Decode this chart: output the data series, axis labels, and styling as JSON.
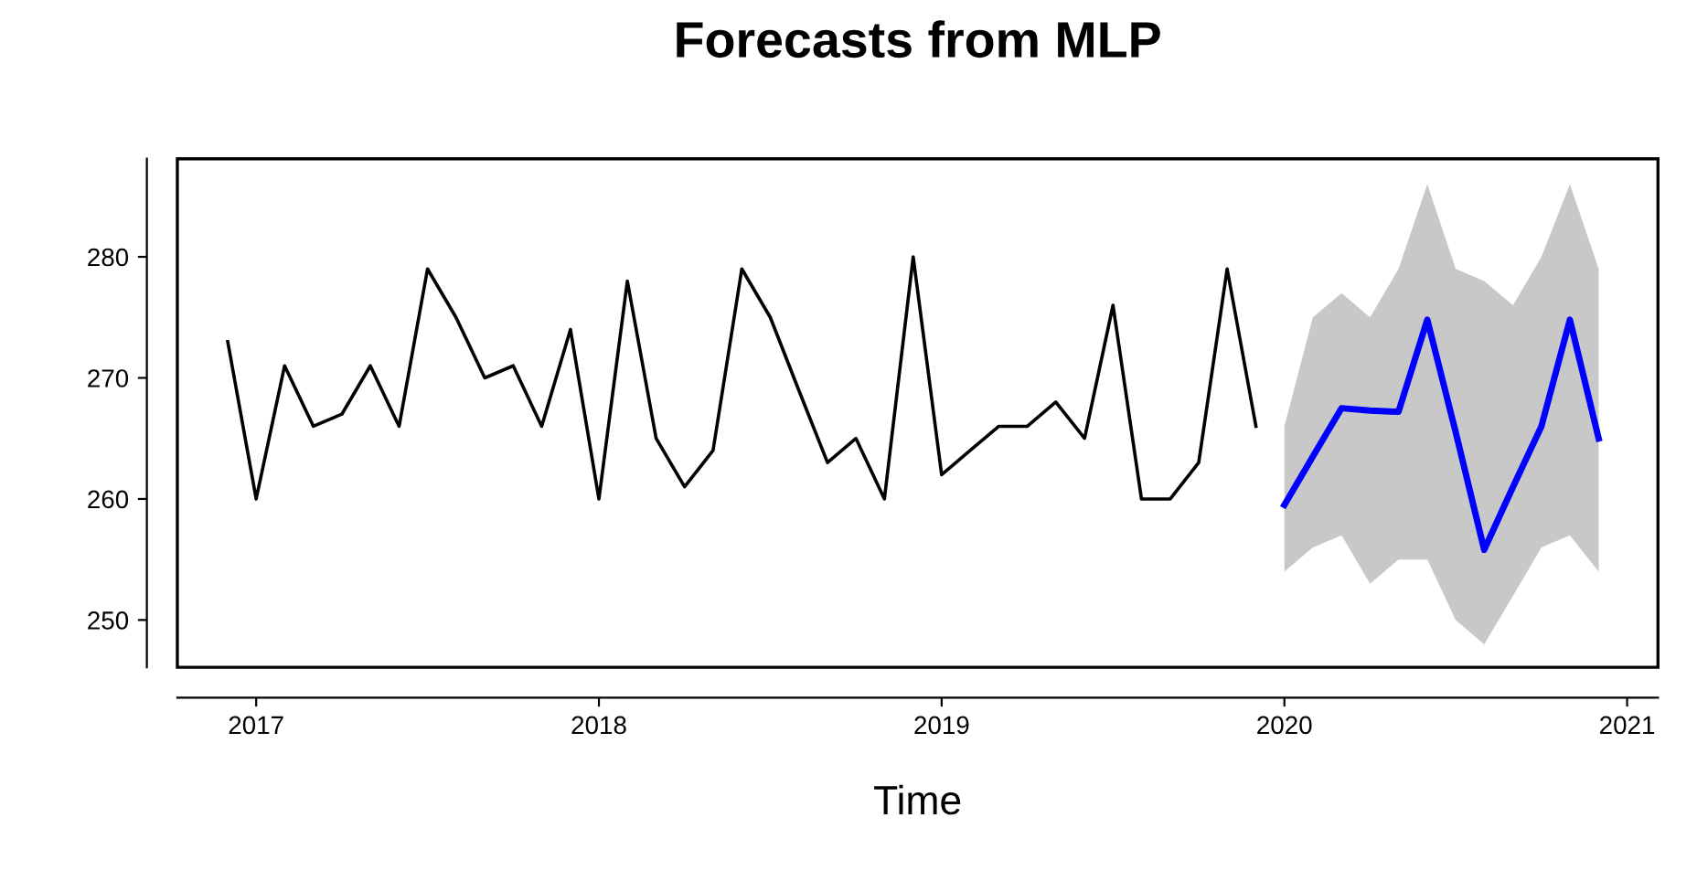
{
  "chart_data": {
    "type": "line",
    "title": "Forecasts from MLP",
    "xlabel": "Time",
    "series": [
      {
        "color": "#000000",
        "x": [
          2016.917,
          2017.0,
          2017.083,
          2017.167,
          2017.25,
          2017.333,
          2017.417,
          2017.5,
          2017.583,
          2017.667,
          2017.75,
          2017.833,
          2017.917,
          2018.0,
          2018.083,
          2018.167,
          2018.25,
          2018.333,
          2018.417,
          2018.5,
          2018.583,
          2018.667,
          2018.75,
          2018.833,
          2018.917,
          2019.0,
          2019.083,
          2019.167,
          2019.25,
          2019.333,
          2019.417,
          2019.5,
          2019.583,
          2019.667,
          2019.75,
          2019.833,
          2019.917
        ],
        "values": [
          273,
          260,
          271,
          266,
          267,
          271,
          266,
          279,
          275,
          270,
          271,
          266,
          274,
          260,
          278,
          265,
          261,
          264,
          279,
          275,
          269,
          263,
          265,
          260,
          280,
          262,
          264,
          266,
          266,
          268,
          265,
          276,
          260,
          260,
          263,
          279,
          266
        ]
      },
      {
        "color": "#0000ff",
        "x": [
          2020.0,
          2020.083,
          2020.167,
          2020.25,
          2020.333,
          2020.417,
          2020.5,
          2020.583,
          2020.667,
          2020.75,
          2020.833,
          2020.917
        ],
        "values": [
          259.5,
          263.5,
          267.5,
          267.3,
          267.2,
          274.8,
          265.5,
          255.8,
          261,
          266,
          274.8,
          265
        ],
        "lower": [
          254,
          256,
          257,
          253,
          255,
          255,
          250,
          248,
          252,
          256,
          257,
          254
        ],
        "upper": [
          266,
          275,
          277,
          275,
          279,
          286,
          279,
          278,
          276,
          280,
          286,
          279
        ]
      }
    ],
    "xlim": [
      2016.77,
      2021.09
    ],
    "xticks": [
      2017,
      2018,
      2019,
      2020,
      2021
    ],
    "ylim": [
      246.1,
      288.1
    ],
    "yticks": [
      250,
      260,
      270,
      280
    ],
    "grid": false,
    "legend": false,
    "marker": "none",
    "line_style": "solid"
  }
}
